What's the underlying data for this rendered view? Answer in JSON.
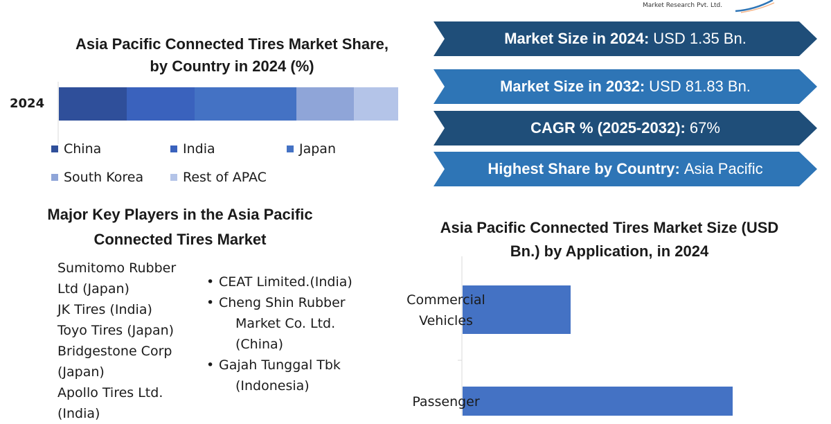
{
  "logo": {
    "text": "Market Research Pvt. Ltd."
  },
  "share_chart": {
    "title_line1": "Asia Pacific Connected Tires Market Share,",
    "title_line2": "by Country in 2024 (%)",
    "year_label": "2024"
  },
  "players": {
    "title_line1": "Major Key Players in the Asia Pacific",
    "title_line2": "Connected Tires Market",
    "left": [
      "Sumitomo Rubber",
      "Ltd (Japan)",
      "JK Tires (India)",
      "Toyo Tires (Japan)",
      "Bridgestone Corp",
      "(Japan)",
      "Apollo Tires Ltd.",
      "(India)"
    ],
    "right": [
      {
        "bullet": "•",
        "lines": [
          "CEAT Limited.(India)"
        ]
      },
      {
        "bullet": "•",
        "lines": [
          "Cheng Shin Rubber",
          "Market Co. Ltd.",
          "(China)"
        ]
      },
      {
        "bullet": "•",
        "lines": [
          "Gajah Tunggal Tbk",
          "(Indonesia)"
        ]
      }
    ]
  },
  "stats": [
    {
      "label": "Market Size in 2024:",
      "value": "USD 1.35 Bn.",
      "color": "#1f4e79"
    },
    {
      "label": "Market Size in 2032:",
      "value": "USD 81.83 Bn.",
      "color": "#2e75b6"
    },
    {
      "label": "CAGR % (2025-2032):",
      "value": "67%",
      "color": "#1f4e79"
    },
    {
      "label": "Highest Share by Country:",
      "value": "Asia Pacific",
      "color": "#2e75b6"
    }
  ],
  "app_chart": {
    "title_line1": "Asia Pacific Connected Tires Market Size (USD",
    "title_line2": "Bn.) by Application, in 2024"
  },
  "chart_data": [
    {
      "type": "bar",
      "orientation": "horizontal",
      "stacked": true,
      "title": "Asia Pacific Connected Tires Market Share, by Country in 2024 (%)",
      "categories": [
        "2024"
      ],
      "series": [
        {
          "name": "China",
          "values": [
            20
          ],
          "color": "#2f4f9a"
        },
        {
          "name": "India",
          "values": [
            20
          ],
          "color": "#3a62bd"
        },
        {
          "name": "Japan",
          "values": [
            30
          ],
          "color": "#4472c4"
        },
        {
          "name": "South Korea",
          "values": [
            17
          ],
          "color": "#8fa5d8"
        },
        {
          "name": "Rest of APAC",
          "values": [
            13
          ],
          "color": "#b4c4e8"
        }
      ],
      "xlim": [
        0,
        100
      ],
      "legend": "bottom"
    },
    {
      "type": "bar",
      "orientation": "horizontal",
      "title": "Asia Pacific Connected Tires Market Size (USD Bn.) by Application, in 2024",
      "categories": [
        "Commercial Vehicles",
        "Passenger"
      ],
      "values": [
        0.3,
        0.75
      ],
      "color": "#4472c4",
      "xlim": [
        0,
        1
      ],
      "grid": false
    }
  ]
}
